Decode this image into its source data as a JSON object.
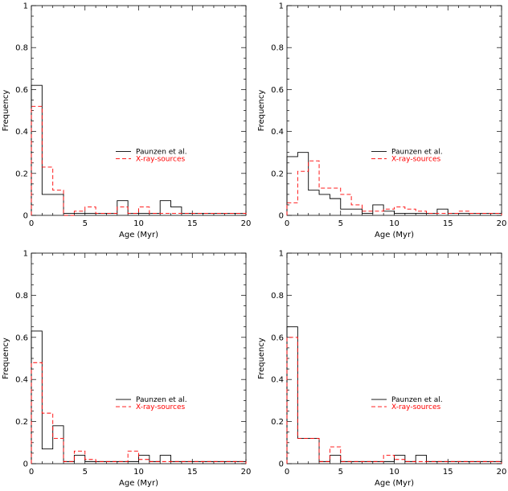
{
  "chart_data": [
    {
      "type": "histogram",
      "panel": "top-left",
      "xlim": [
        0,
        20
      ],
      "ylim": [
        0,
        1
      ],
      "xlabel": "Age (Myr)",
      "ylabel": "Frequency",
      "xticks": [
        0,
        5,
        10,
        15,
        20
      ],
      "yticks": [
        0,
        0.2,
        0.4,
        0.6,
        0.8,
        1
      ],
      "grid": false,
      "legend_position": "center-right",
      "bin_edges": [
        0,
        1,
        2,
        3,
        4,
        5,
        6,
        7,
        8,
        9,
        10,
        11,
        12,
        13,
        14,
        15,
        16,
        17,
        18,
        19,
        20
      ],
      "series": [
        {
          "name": "Paunzen et al.",
          "style": "solid",
          "color": "#000000",
          "values": [
            0.62,
            0.1,
            0.1,
            0.01,
            0.01,
            0.01,
            0.01,
            0.01,
            0.07,
            0.01,
            0.01,
            0.01,
            0.07,
            0.04,
            0.01,
            0.01,
            0.01,
            0.01,
            0.01,
            0.01
          ]
        },
        {
          "name": "X-ray-sources",
          "style": "dashed",
          "color": "#ff0000",
          "values": [
            0.52,
            0.23,
            0.12,
            0.0,
            0.02,
            0.04,
            0.01,
            0.01,
            0.04,
            0.01,
            0.04,
            0.01,
            0.01,
            0.01,
            0.01,
            0.01,
            0.01,
            0.01,
            0.01,
            0.01
          ]
        }
      ]
    },
    {
      "type": "histogram",
      "panel": "top-right",
      "xlim": [
        0,
        20
      ],
      "ylim": [
        0,
        1
      ],
      "xlabel": "Age (Myr)",
      "ylabel": "Frequency",
      "xticks": [
        0,
        5,
        10,
        15,
        20
      ],
      "yticks": [
        0,
        0.2,
        0.4,
        0.6,
        0.8,
        1
      ],
      "grid": false,
      "legend_position": "center-right",
      "bin_edges": [
        0,
        1,
        2,
        3,
        4,
        5,
        6,
        7,
        8,
        9,
        10,
        11,
        12,
        13,
        14,
        15,
        16,
        17,
        18,
        19,
        20
      ],
      "series": [
        {
          "name": "Paunzen et al.",
          "style": "solid",
          "color": "#000000",
          "values": [
            0.28,
            0.3,
            0.12,
            0.1,
            0.08,
            0.03,
            0.03,
            0.01,
            0.05,
            0.02,
            0.01,
            0.01,
            0.01,
            0.01,
            0.03,
            0.01,
            0.01,
            0.01,
            0.01,
            0.01
          ]
        },
        {
          "name": "X-ray-sources",
          "style": "dashed",
          "color": "#ff0000",
          "values": [
            0.06,
            0.21,
            0.26,
            0.13,
            0.13,
            0.1,
            0.05,
            0.02,
            0.02,
            0.03,
            0.04,
            0.03,
            0.02,
            0.01,
            0.01,
            0.01,
            0.02,
            0.01,
            0.01,
            0.01
          ]
        }
      ]
    },
    {
      "type": "histogram",
      "panel": "bottom-left",
      "xlim": [
        0,
        20
      ],
      "ylim": [
        0,
        1
      ],
      "xlabel": "Age (Myr)",
      "ylabel": "Frequency",
      "xticks": [
        0,
        5,
        10,
        15,
        20
      ],
      "yticks": [
        0,
        0.2,
        0.4,
        0.6,
        0.8,
        1
      ],
      "grid": false,
      "legend_position": "center-right",
      "bin_edges": [
        0,
        1,
        2,
        3,
        4,
        5,
        6,
        7,
        8,
        9,
        10,
        11,
        12,
        13,
        14,
        15,
        16,
        17,
        18,
        19,
        20
      ],
      "series": [
        {
          "name": "Paunzen et al.",
          "style": "solid",
          "color": "#000000",
          "values": [
            0.63,
            0.07,
            0.18,
            0.01,
            0.04,
            0.01,
            0.01,
            0.01,
            0.01,
            0.01,
            0.04,
            0.01,
            0.04,
            0.01,
            0.01,
            0.01,
            0.01,
            0.01,
            0.01,
            0.01
          ]
        },
        {
          "name": "X-ray-sources",
          "style": "dashed",
          "color": "#ff0000",
          "values": [
            0.48,
            0.24,
            0.12,
            0.01,
            0.06,
            0.02,
            0.01,
            0.01,
            0.01,
            0.06,
            0.02,
            0.01,
            0.01,
            0.01,
            0.01,
            0.01,
            0.01,
            0.01,
            0.01,
            0.01
          ]
        }
      ]
    },
    {
      "type": "histogram",
      "panel": "bottom-right",
      "xlim": [
        0,
        20
      ],
      "ylim": [
        0,
        1
      ],
      "xlabel": "Age (Myr)",
      "ylabel": "Frequency",
      "xticks": [
        0,
        5,
        10,
        15,
        20
      ],
      "yticks": [
        0,
        0.2,
        0.4,
        0.6,
        0.8,
        1
      ],
      "grid": false,
      "legend_position": "center-right",
      "bin_edges": [
        0,
        1,
        2,
        3,
        4,
        5,
        6,
        7,
        8,
        9,
        10,
        11,
        12,
        13,
        14,
        15,
        16,
        17,
        18,
        19,
        20
      ],
      "series": [
        {
          "name": "Paunzen et al.",
          "style": "solid",
          "color": "#000000",
          "values": [
            0.65,
            0.12,
            0.12,
            0.01,
            0.04,
            0.01,
            0.01,
            0.01,
            0.01,
            0.01,
            0.04,
            0.01,
            0.04,
            0.01,
            0.01,
            0.01,
            0.01,
            0.01,
            0.01,
            0.01
          ]
        },
        {
          "name": "X-ray-sources",
          "style": "dashed",
          "color": "#ff0000",
          "values": [
            0.6,
            0.12,
            0.12,
            0.01,
            0.08,
            0.01,
            0.01,
            0.01,
            0.01,
            0.04,
            0.02,
            0.01,
            0.01,
            0.01,
            0.01,
            0.01,
            0.01,
            0.01,
            0.01,
            0.01
          ]
        }
      ]
    }
  ]
}
